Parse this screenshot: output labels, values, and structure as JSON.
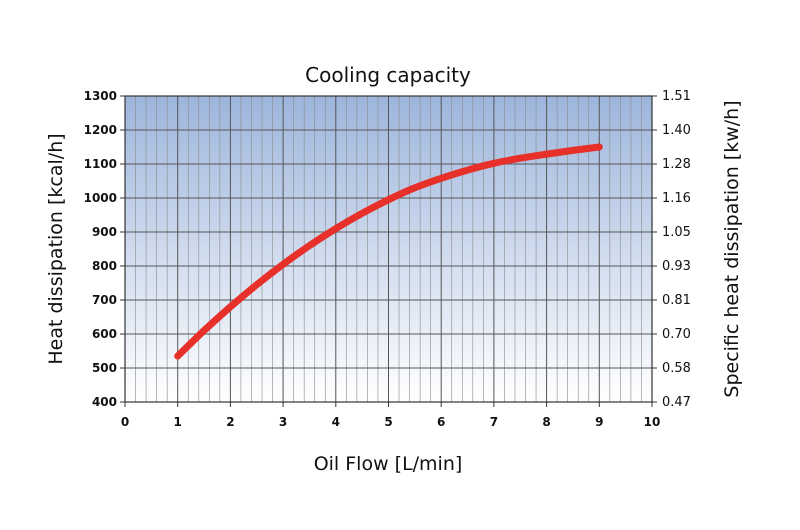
{
  "chart_data": {
    "type": "line",
    "title": "Cooling capacity",
    "xlabel": "Oil Flow [L/min]",
    "ylabel": "Heat dissipation [kcal/h]",
    "y2label": "Specific heat dissipation [kw/h]",
    "xlim": [
      0,
      10
    ],
    "ylim": [
      400,
      1300
    ],
    "x_ticks": [
      "0",
      "1",
      "2",
      "3",
      "4",
      "5",
      "6",
      "7",
      "8",
      "9",
      "10"
    ],
    "y_ticks": [
      "400",
      "500",
      "600",
      "700",
      "800",
      "900",
      "1000",
      "1100",
      "1200",
      "1300"
    ],
    "y2_ticks": [
      "0.47",
      "0.58",
      "0.70",
      "0.81",
      "0.93",
      "1.05",
      "1.16",
      "1.28",
      "1.40",
      "1.51"
    ],
    "grid": true,
    "background_gradient": [
      "#9db5dc",
      "#ffffff"
    ],
    "series": [
      {
        "color": "#e8302a",
        "x": [
          1,
          1.5,
          2,
          2.5,
          3,
          3.5,
          4,
          4.5,
          5,
          5.5,
          6,
          6.5,
          7,
          7.5,
          8,
          8.5,
          9
        ],
        "y": [
          535,
          610,
          680,
          745,
          805,
          860,
          910,
          955,
          995,
          1030,
          1058,
          1082,
          1102,
          1117,
          1129,
          1140,
          1150
        ]
      }
    ]
  }
}
